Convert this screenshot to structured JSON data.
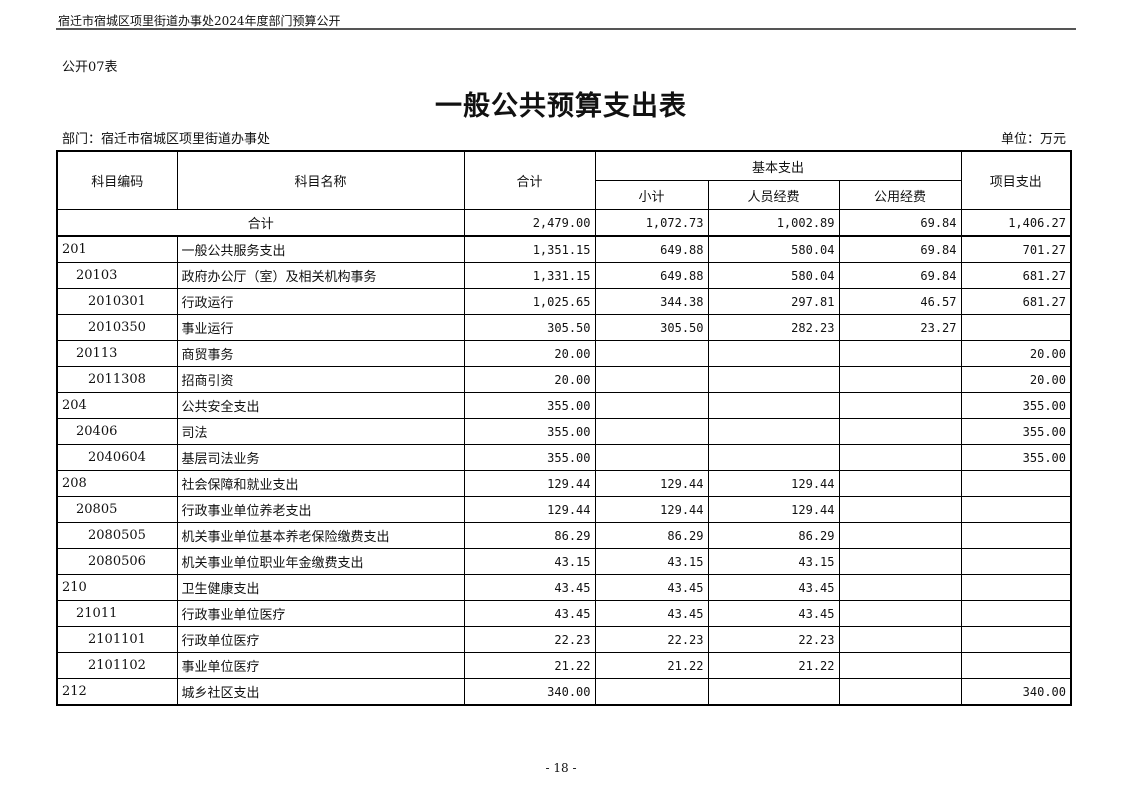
{
  "header": "宿迁市宿城区项里街道办事处2024年度部门预算公开",
  "form_no": "公开07表",
  "title": "一般公共预算支出表",
  "department": "部门：宿迁市宿城区项里街道办事处",
  "unit": "单位：万元",
  "columns": {
    "code": "科目编码",
    "name": "科目名称",
    "total": "合计",
    "basic": "基本支出",
    "subtotal": "小计",
    "personnel": "人员经费",
    "public": "公用经费",
    "project": "项目支出"
  },
  "total_row": {
    "label": "合计",
    "total": "2,479.00",
    "subtotal": "1,072.73",
    "personnel": "1,002.89",
    "public": "69.84",
    "project": "1,406.27"
  },
  "rows": [
    {
      "level": 1,
      "code": "201",
      "name": "一般公共服务支出",
      "total": "1,351.15",
      "subtotal": "649.88",
      "personnel": "580.04",
      "public": "69.84",
      "project": "701.27"
    },
    {
      "level": 2,
      "code": "20103",
      "name": "政府办公厅（室）及相关机构事务",
      "total": "1,331.15",
      "subtotal": "649.88",
      "personnel": "580.04",
      "public": "69.84",
      "project": "681.27"
    },
    {
      "level": 3,
      "code": "2010301",
      "name": "行政运行",
      "total": "1,025.65",
      "subtotal": "344.38",
      "personnel": "297.81",
      "public": "46.57",
      "project": "681.27"
    },
    {
      "level": 3,
      "code": "2010350",
      "name": "事业运行",
      "total": "305.50",
      "subtotal": "305.50",
      "personnel": "282.23",
      "public": "23.27",
      "project": ""
    },
    {
      "level": 2,
      "code": "20113",
      "name": "商贸事务",
      "total": "20.00",
      "subtotal": "",
      "personnel": "",
      "public": "",
      "project": "20.00"
    },
    {
      "level": 3,
      "code": "2011308",
      "name": "招商引资",
      "total": "20.00",
      "subtotal": "",
      "personnel": "",
      "public": "",
      "project": "20.00"
    },
    {
      "level": 1,
      "code": "204",
      "name": "公共安全支出",
      "total": "355.00",
      "subtotal": "",
      "personnel": "",
      "public": "",
      "project": "355.00"
    },
    {
      "level": 2,
      "code": "20406",
      "name": "司法",
      "total": "355.00",
      "subtotal": "",
      "personnel": "",
      "public": "",
      "project": "355.00"
    },
    {
      "level": 3,
      "code": "2040604",
      "name": "基层司法业务",
      "total": "355.00",
      "subtotal": "",
      "personnel": "",
      "public": "",
      "project": "355.00"
    },
    {
      "level": 1,
      "code": "208",
      "name": "社会保障和就业支出",
      "total": "129.44",
      "subtotal": "129.44",
      "personnel": "129.44",
      "public": "",
      "project": ""
    },
    {
      "level": 2,
      "code": "20805",
      "name": "行政事业单位养老支出",
      "total": "129.44",
      "subtotal": "129.44",
      "personnel": "129.44",
      "public": "",
      "project": ""
    },
    {
      "level": 3,
      "code": "2080505",
      "name": "机关事业单位基本养老保险缴费支出",
      "total": "86.29",
      "subtotal": "86.29",
      "personnel": "86.29",
      "public": "",
      "project": ""
    },
    {
      "level": 3,
      "code": "2080506",
      "name": "机关事业单位职业年金缴费支出",
      "total": "43.15",
      "subtotal": "43.15",
      "personnel": "43.15",
      "public": "",
      "project": ""
    },
    {
      "level": 1,
      "code": "210",
      "name": "卫生健康支出",
      "total": "43.45",
      "subtotal": "43.45",
      "personnel": "43.45",
      "public": "",
      "project": ""
    },
    {
      "level": 2,
      "code": "21011",
      "name": "行政事业单位医疗",
      "total": "43.45",
      "subtotal": "43.45",
      "personnel": "43.45",
      "public": "",
      "project": ""
    },
    {
      "level": 3,
      "code": "2101101",
      "name": "行政单位医疗",
      "total": "22.23",
      "subtotal": "22.23",
      "personnel": "22.23",
      "public": "",
      "project": ""
    },
    {
      "level": 3,
      "code": "2101102",
      "name": "事业单位医疗",
      "total": "21.22",
      "subtotal": "21.22",
      "personnel": "21.22",
      "public": "",
      "project": ""
    },
    {
      "level": 1,
      "code": "212",
      "name": "城乡社区支出",
      "total": "340.00",
      "subtotal": "",
      "personnel": "",
      "public": "",
      "project": "340.00"
    }
  ],
  "page_number": "- 18 -"
}
